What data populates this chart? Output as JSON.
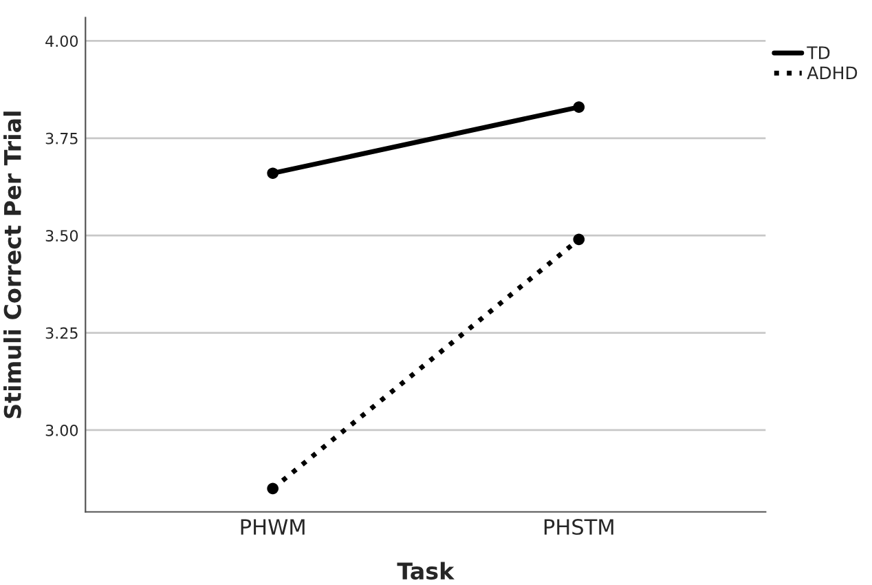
{
  "chart_data": {
    "type": "line",
    "xlabel": "Task",
    "ylabel": "Stimuli Correct Per Trial",
    "categories": [
      "PHWM",
      "PHSTM"
    ],
    "series": [
      {
        "name": "TD",
        "color": "#000000",
        "values": [
          3.66,
          3.83
        ],
        "line_style": "solid"
      },
      {
        "name": "ADHD",
        "color": "#000000",
        "values": [
          2.85,
          3.49
        ],
        "line_style": "dotted"
      }
    ],
    "ylim": [
      2.79,
      4.06
    ],
    "yticks": [
      {
        "value": 3.0,
        "label": "3.00"
      },
      {
        "value": 3.25,
        "label": "3.25"
      },
      {
        "value": 3.5,
        "label": "3.50"
      },
      {
        "value": 3.75,
        "label": "3.75"
      },
      {
        "value": 4.0,
        "label": "4.00"
      }
    ],
    "grid": "y",
    "legend": "top right",
    "marker": "circle"
  }
}
